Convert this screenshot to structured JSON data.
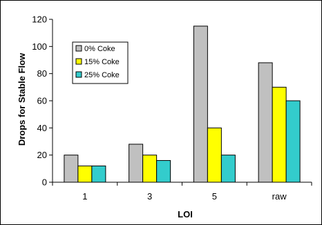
{
  "chart_data": {
    "type": "bar",
    "title": "",
    "xlabel": "LOI",
    "ylabel": "Drops for Stable Flow",
    "categories": [
      "1",
      "3",
      "5",
      "raw"
    ],
    "ylim": [
      0,
      120
    ],
    "yticks": [
      0,
      20,
      40,
      60,
      80,
      100,
      120
    ],
    "grid": false,
    "legend": "upper-left inside plot",
    "series": [
      {
        "name": "0% Coke",
        "color": "#C0C0C0",
        "values": [
          20,
          28,
          115,
          88
        ]
      },
      {
        "name": "15% Coke",
        "color": "#FFFF00",
        "values": [
          12,
          20,
          40,
          70
        ]
      },
      {
        "name": "25% Coke",
        "color": "#33CCCC",
        "values": [
          12,
          16,
          20,
          60
        ]
      }
    ]
  }
}
